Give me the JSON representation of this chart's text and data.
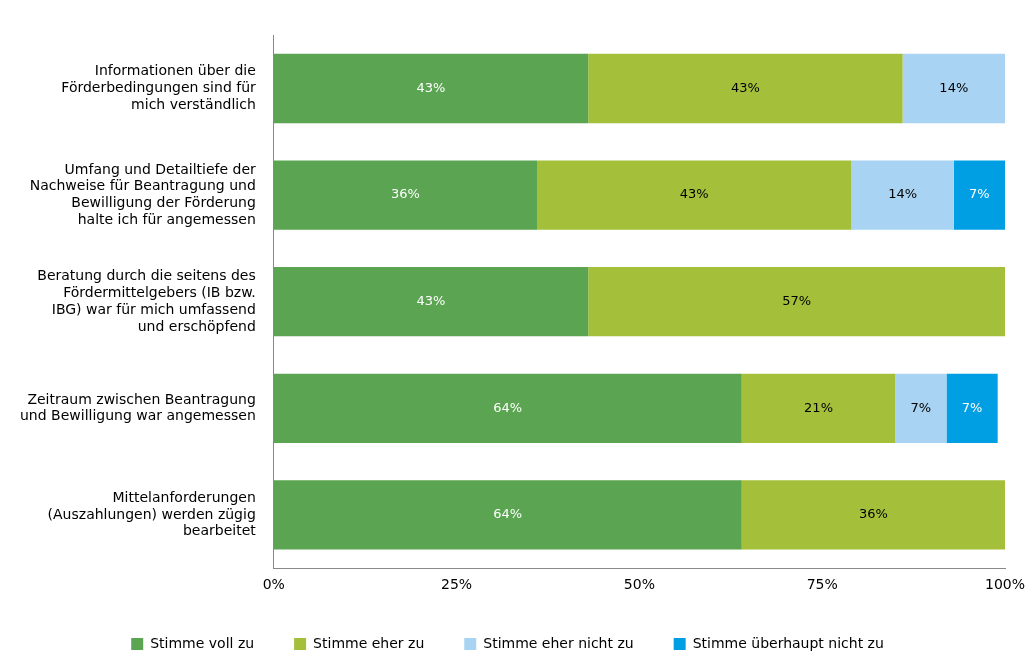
{
  "chart_data": {
    "type": "bar",
    "orientation": "horizontal",
    "stacked": true,
    "grid": false,
    "legend": "bottom",
    "categories": [
      "Informationen über die Förderbedingungen sind für mich verständlich",
      "Umfang und Detailtiefe der Nachweise für Beantragung und Bewilligung der Förderung halte ich für angemessen",
      "Beratung durch die seitens des Fördermittelgebers (IB bzw. IBG) war für mich umfassend und erschöpfend",
      "Zeitraum zwischen Beantragung und Bewilligung war angemessen",
      "Mittelanforderungen (Auszahlungen) werden zügig bearbeitet"
    ],
    "series": [
      {
        "name": "Stimme voll zu",
        "color": "#5ba552",
        "values": [
          43,
          36,
          43,
          64,
          64
        ],
        "value_labels": [
          "43%",
          "36%",
          "43%",
          "64%",
          "64%"
        ]
      },
      {
        "name": "Stimme eher zu",
        "color": "#a4c03a",
        "values": [
          43,
          43,
          57,
          21,
          36
        ],
        "value_labels": [
          "43%",
          "43%",
          "57%",
          "21%",
          "36%"
        ]
      },
      {
        "name": "Stimme eher nicht zu",
        "color": "#a9d3f2",
        "values": [
          14,
          14,
          null,
          7,
          null
        ],
        "value_labels": [
          "14%",
          "14%",
          null,
          "7%",
          null
        ]
      },
      {
        "name": "Stimme überhaupt nicht zu",
        "color": "#009fe3",
        "values": [
          null,
          7,
          null,
          7,
          null
        ],
        "value_labels": [
          null,
          "7%",
          null,
          "7%",
          null
        ]
      }
    ],
    "xlim": [
      0,
      100
    ],
    "xticks": [
      {
        "value": 0,
        "label": "0%"
      },
      {
        "value": 25,
        "label": "25%"
      },
      {
        "value": 50,
        "label": "50%"
      },
      {
        "value": 75,
        "label": "75%"
      },
      {
        "value": 100,
        "label": "100%"
      }
    ]
  }
}
